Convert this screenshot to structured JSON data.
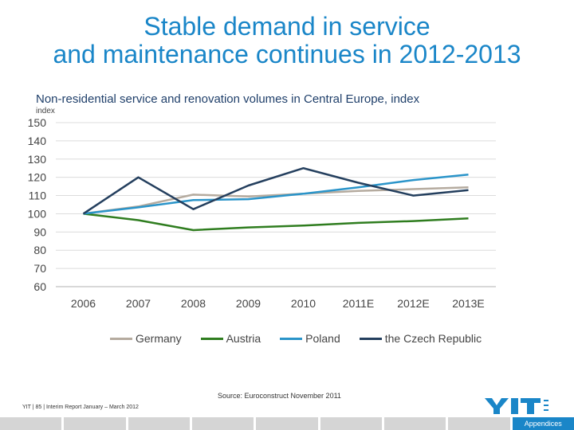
{
  "slide": {
    "title_line1": "Stable demand in service",
    "title_line2": "and maintenance continues in 2012-2013",
    "source": "Source: Euroconstruct November 2011",
    "footer": "YIT  | 85 | Interim Report January – March 2012",
    "appendices": "Appendices",
    "colors": {
      "title": "#1a86c8",
      "accent": "#1a86c8"
    }
  },
  "chart_data": {
    "type": "line",
    "title": "Non-residential service and renovation volumes in Central Europe, index",
    "ylabel": "index",
    "xlabel": "",
    "categories": [
      "2006",
      "2007",
      "2008",
      "2009",
      "2010",
      "2011E",
      "2012E",
      "2013E"
    ],
    "ylim": [
      60,
      150
    ],
    "yticks": [
      60,
      70,
      80,
      90,
      100,
      110,
      120,
      130,
      140,
      150
    ],
    "grid": true,
    "legend": "bottom",
    "series": [
      {
        "name": "Germany",
        "color": "#b5ab9f",
        "values": [
          100,
          104,
          110.5,
          109.5,
          111,
          112.5,
          113.5,
          114.5
        ]
      },
      {
        "name": "Austria",
        "color": "#2f7d1f",
        "values": [
          100,
          96.5,
          91,
          92.5,
          93.5,
          95,
          96,
          97.5
        ]
      },
      {
        "name": "Poland",
        "color": "#2a94c9",
        "values": [
          100,
          103.5,
          107.5,
          108,
          111,
          114.5,
          118.5,
          121.5
        ]
      },
      {
        "name": "the Czech Republic",
        "color": "#243f5e",
        "values": [
          100,
          120,
          102.5,
          115.5,
          125,
          117,
          110,
          113
        ]
      }
    ]
  }
}
